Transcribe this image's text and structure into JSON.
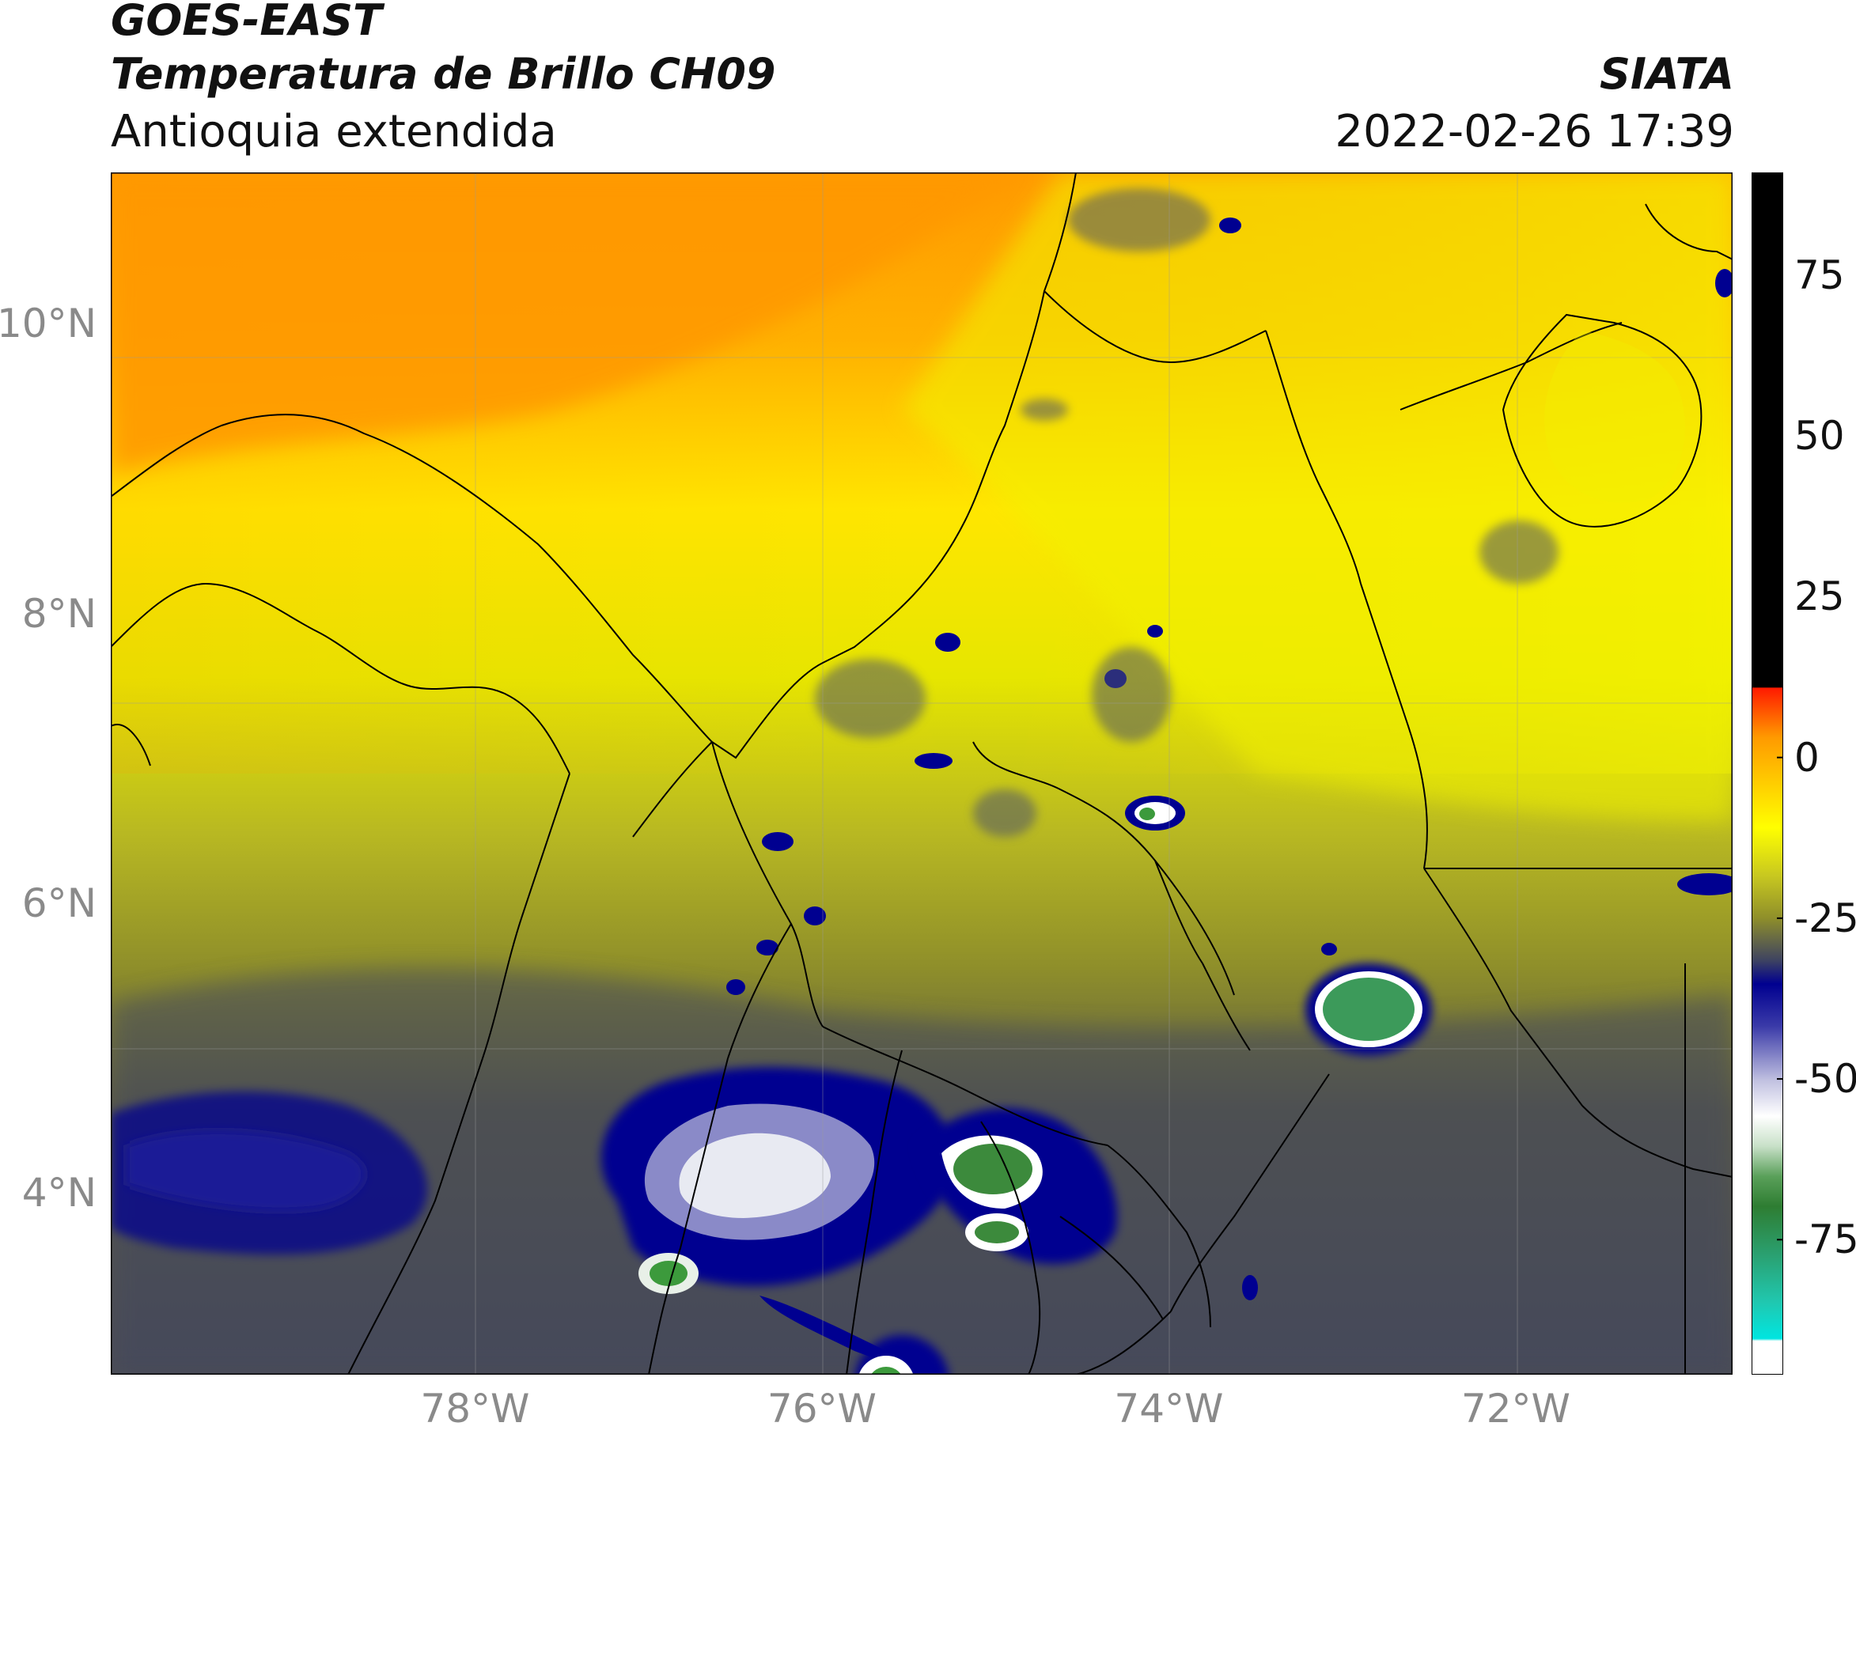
{
  "header": {
    "satellite": "GOES-EAST",
    "product": "Temperatura de Brillo CH09",
    "region": "Antioquia extendida",
    "institution": "SIATA",
    "timestamp": "2022-02-26 17:39"
  },
  "axes": {
    "lat_labels": [
      {
        "value": 10,
        "text": "10°N"
      },
      {
        "value": 8,
        "text": "8°N"
      },
      {
        "value": 6,
        "text": "6°N"
      },
      {
        "value": 4,
        "text": "4°N"
      }
    ],
    "lon_labels": [
      {
        "value": -78,
        "text": "78°W"
      },
      {
        "value": -76,
        "text": "76°W"
      },
      {
        "value": -74,
        "text": "74°W"
      },
      {
        "value": -72,
        "text": "72°W"
      }
    ],
    "lat_range": [
      2.75,
      11.05
    ],
    "lon_range": [
      -80.1,
      -70.75
    ]
  },
  "colorbar": {
    "range": [
      -96,
      91
    ],
    "ticks": [
      {
        "value": 75,
        "text": "75"
      },
      {
        "value": 50,
        "text": "50"
      },
      {
        "value": 25,
        "text": "25"
      },
      {
        "value": 0,
        "text": "0"
      },
      {
        "value": -25,
        "text": "-25"
      },
      {
        "value": -50,
        "text": "-50"
      },
      {
        "value": -75,
        "text": "-75"
      }
    ],
    "colors": {
      "black": "#000000",
      "red": "#ff1a00",
      "orange": "#ff9a00",
      "yellow": "#ffff00",
      "olive": "#8f8f2a",
      "slate": "#3f4460",
      "navy": "#000090",
      "white": "#ffffff",
      "green": "#2e7d32",
      "cyan": "#00e5e0"
    }
  }
}
